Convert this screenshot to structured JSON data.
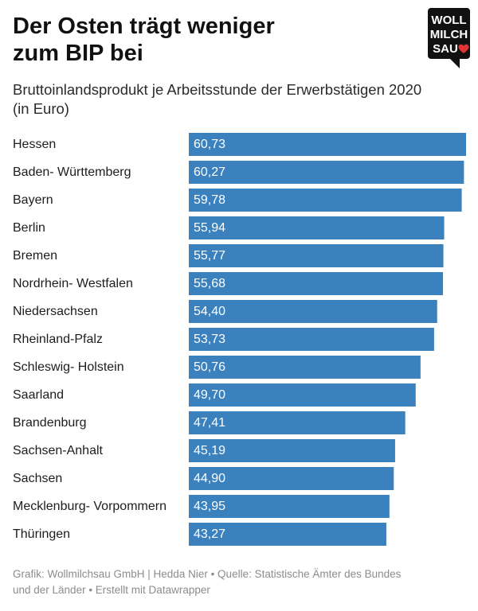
{
  "header": {
    "title_line1": "Der Osten trägt weniger",
    "title_line2": "zum BIP bei",
    "subtitle_line1": "Bruttoinlandsprodukt je Arbeitsstunde der Erwerbstätigen 2020",
    "subtitle_line2": "(in Euro)"
  },
  "logo": {
    "line1": "WOLL",
    "line2": "MILCH",
    "line3": "SAU",
    "heart_color": "#e03434",
    "bg_color": "#111111",
    "icon": "heart-icon"
  },
  "chart_data": {
    "type": "bar",
    "orientation": "horizontal",
    "categories": [
      "Hessen",
      "Baden- Württemberg",
      "Bayern",
      "Berlin",
      "Bremen",
      "Nordrhein- Westfalen",
      "Niedersachsen",
      "Rheinland-Pfalz",
      "Schleswig- Holstein",
      "Saarland",
      "Brandenburg",
      "Sachsen-Anhalt",
      "Sachsen",
      "Mecklenburg- Vorpommern",
      "Thüringen"
    ],
    "values": [
      60.73,
      60.27,
      59.78,
      55.94,
      55.77,
      55.68,
      54.4,
      53.73,
      50.76,
      49.7,
      47.41,
      45.19,
      44.9,
      43.95,
      43.27
    ],
    "value_labels": [
      "60,73",
      "60,27",
      "59,78",
      "55,94",
      "55,77",
      "55,68",
      "54,40",
      "53,73",
      "50,76",
      "49,70",
      "47,41",
      "45,19",
      "44,90",
      "43,95",
      "43,27"
    ],
    "xlim": [
      0,
      60.73
    ],
    "bar_color": "#3a81be",
    "grid": false,
    "legend": "none"
  },
  "footer": {
    "line1": "Grafik: Wollmilchsau GmbH | Hedda Nier • Quelle: Statistische Ämter des Bundes",
    "line2": "und der Länder • Erstellt mit Datawrapper"
  }
}
